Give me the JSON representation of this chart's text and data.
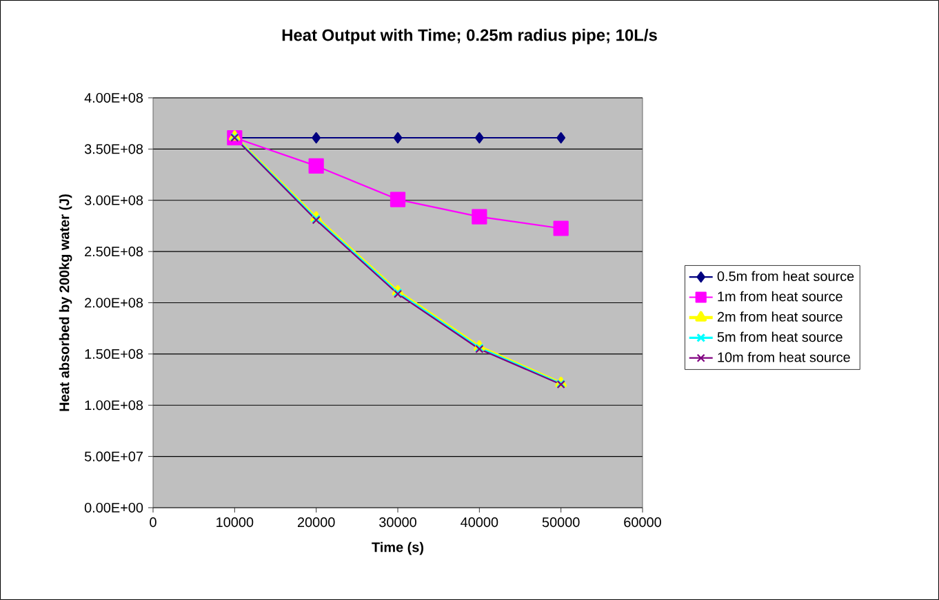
{
  "chart_data": {
    "type": "line",
    "title": "Heat Output with Time; 0.25m radius pipe; 10L/s",
    "xlabel": "Time (s)",
    "ylabel": "Heat absorbed by 200kg water (J)",
    "x": [
      10000,
      20000,
      30000,
      40000,
      50000
    ],
    "series": [
      {
        "name": "0.5m from heat source",
        "color": "#000080",
        "marker": "diamond",
        "values": [
          361000000,
          361000000,
          361000000,
          361000000,
          361000000
        ]
      },
      {
        "name": "1m from heat source",
        "color": "#ff00ff",
        "marker": "square",
        "values": [
          361000000,
          333500000,
          300800000,
          283900000,
          272600000
        ]
      },
      {
        "name": "2m from heat source",
        "color": "#ffff00",
        "marker": "triangle",
        "values": [
          362000000,
          283000000,
          211000000,
          157000000,
          121500000
        ]
      },
      {
        "name": "5m from heat source",
        "color": "#00ffff",
        "marker": "cross",
        "values": [
          361500000,
          281800000,
          209800000,
          155900000,
          120900000
        ]
      },
      {
        "name": "10m from heat source",
        "color": "#800080",
        "marker": "cross",
        "values": [
          361000000,
          280700000,
          208600000,
          154800000,
          120300000
        ]
      }
    ],
    "xlim": [
      0,
      60000
    ],
    "xticks": [
      0,
      10000,
      20000,
      30000,
      40000,
      50000,
      60000
    ],
    "ylim": [
      0,
      400000000
    ],
    "yticks": [
      {
        "value": 0,
        "label": "0.00E+00"
      },
      {
        "value": 50000000,
        "label": "5.00E+07"
      },
      {
        "value": 100000000,
        "label": "1.00E+08"
      },
      {
        "value": 150000000,
        "label": "1.50E+08"
      },
      {
        "value": 200000000,
        "label": "2.00E+08"
      },
      {
        "value": 250000000,
        "label": "2.50E+08"
      },
      {
        "value": 300000000,
        "label": "3.00E+08"
      },
      {
        "value": 350000000,
        "label": "3.50E+08"
      },
      {
        "value": 400000000,
        "label": "4.00E+08"
      }
    ],
    "grid": "y",
    "legend": "right"
  }
}
